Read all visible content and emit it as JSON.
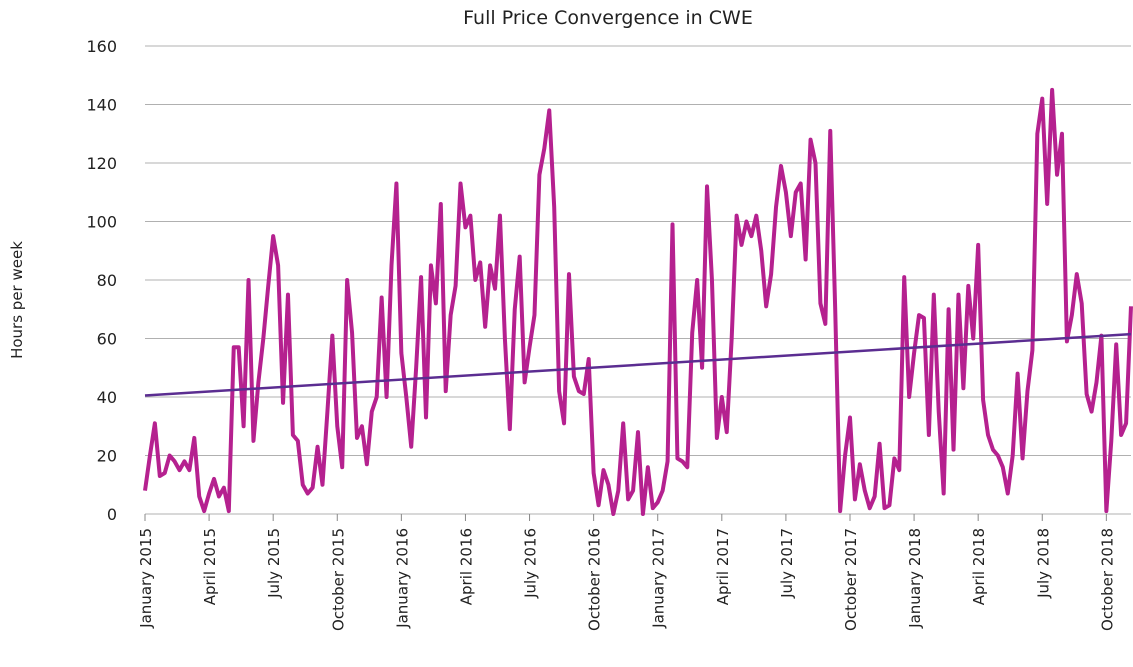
{
  "chart_data": {
    "type": "line",
    "title": "Full Price Convergence in CWE",
    "y_label": "Hours per week",
    "categories": [
      "January 2015",
      null,
      null,
      null,
      null,
      null,
      null,
      null,
      null,
      null,
      null,
      null,
      null,
      "April 2015",
      null,
      null,
      null,
      null,
      null,
      null,
      null,
      null,
      null,
      null,
      null,
      null,
      "July 2015",
      null,
      null,
      null,
      null,
      null,
      null,
      null,
      null,
      null,
      null,
      null,
      null,
      "October 2015",
      null,
      null,
      null,
      null,
      null,
      null,
      null,
      null,
      null,
      null,
      null,
      null,
      "January 2016",
      null,
      null,
      null,
      null,
      null,
      null,
      null,
      null,
      null,
      null,
      null,
      null,
      "April 2016",
      null,
      null,
      null,
      null,
      null,
      null,
      null,
      null,
      null,
      null,
      null,
      null,
      "July 2016",
      null,
      null,
      null,
      null,
      null,
      null,
      null,
      null,
      null,
      null,
      null,
      null,
      "October 2016",
      null,
      null,
      null,
      null,
      null,
      null,
      null,
      null,
      null,
      null,
      null,
      null,
      "January 2017",
      null,
      null,
      null,
      null,
      null,
      null,
      null,
      null,
      null,
      null,
      null,
      null,
      "April 2017",
      null,
      null,
      null,
      null,
      null,
      null,
      null,
      null,
      null,
      null,
      null,
      null,
      "July 2017",
      null,
      null,
      null,
      null,
      null,
      null,
      null,
      null,
      null,
      null,
      null,
      null,
      "October 2017",
      null,
      null,
      null,
      null,
      null,
      null,
      null,
      null,
      null,
      null,
      null,
      null,
      "January 2018",
      null,
      null,
      null,
      null,
      null,
      null,
      null,
      null,
      null,
      null,
      null,
      null,
      "April 2018",
      null,
      null,
      null,
      null,
      null,
      null,
      null,
      null,
      null,
      null,
      null,
      null,
      "July 2018",
      null,
      null,
      null,
      null,
      null,
      null,
      null,
      null,
      null,
      null,
      null,
      null,
      "October 2018",
      null,
      null,
      null,
      null,
      null
    ],
    "series": [
      {
        "color": "#b5218f",
        "values": [
          8,
          20,
          31,
          13,
          14,
          20,
          18,
          15,
          18,
          15,
          26,
          6,
          1,
          7,
          12,
          6,
          9,
          1,
          57,
          57,
          30,
          80,
          25,
          45,
          60,
          78,
          95,
          85,
          38,
          75,
          27,
          25,
          10,
          7,
          9,
          23,
          10,
          35,
          61,
          30,
          16,
          80,
          62,
          26,
          30,
          17,
          35,
          40,
          74,
          40,
          85,
          113,
          55,
          40,
          23,
          50,
          81,
          33,
          85,
          72,
          106,
          42,
          68,
          78,
          113,
          98,
          102,
          80,
          86,
          64,
          85,
          77,
          102,
          60,
          29,
          70,
          88,
          45,
          57,
          68,
          116,
          125,
          138,
          105,
          42,
          31,
          82,
          47,
          42,
          41,
          53,
          14,
          3,
          15,
          10,
          0,
          8,
          31,
          5,
          8,
          28,
          0,
          16,
          2,
          4,
          8,
          18,
          99,
          19,
          18,
          16,
          62,
          80,
          50,
          112,
          80,
          26,
          40,
          28,
          60,
          102,
          92,
          100,
          95,
          102,
          90,
          71,
          82,
          105,
          119,
          110,
          95,
          110,
          113,
          87,
          128,
          120,
          72,
          65,
          131,
          70,
          1,
          20,
          33,
          5,
          17,
          8,
          2,
          6,
          24,
          2,
          3,
          19,
          15,
          81,
          40,
          55,
          68,
          67,
          27,
          75,
          35,
          7,
          70,
          22,
          75,
          43,
          78,
          60,
          92,
          39,
          27,
          22,
          20,
          16,
          7,
          20,
          48,
          19,
          42,
          56,
          130,
          142,
          106,
          145,
          116,
          130,
          59,
          68,
          82,
          72,
          41,
          35,
          45,
          61,
          1,
          25,
          58,
          27,
          31,
          71
        ]
      }
    ],
    "trendline": {
      "start": 40.5,
      "end": 61.5,
      "color": "#5b2d91"
    },
    "ylim": [
      0,
      160
    ],
    "yticks": [
      0,
      20,
      40,
      60,
      80,
      100,
      120,
      140,
      160
    ],
    "grid": true
  }
}
